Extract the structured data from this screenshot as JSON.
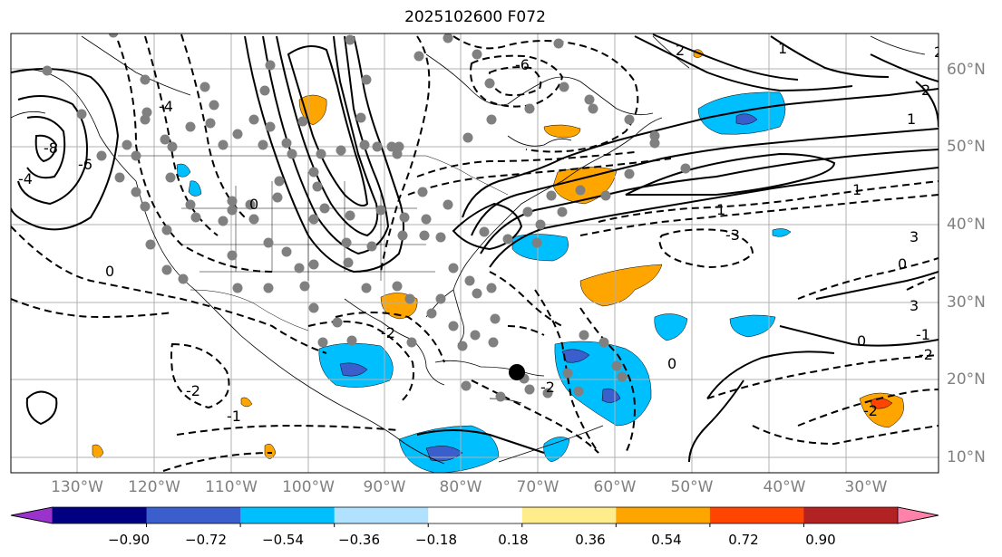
{
  "title": "2025102600 F072",
  "lat_labels": [
    "60°N",
    "50°N",
    "40°N",
    "30°N",
    "20°N",
    "10°N"
  ],
  "lon_labels": [
    "130°W",
    "120°W",
    "110°W",
    "100°W",
    "90°W",
    "80°W",
    "70°W",
    "60°W",
    "50°W",
    "40°W",
    "30°W"
  ],
  "contour_labels": [
    "-6",
    "-8",
    "-6",
    "-4",
    "-4",
    "-2",
    "-2",
    "-2",
    "-2",
    "-1",
    "-1",
    "0",
    "0",
    "0",
    "0",
    "-3",
    "1",
    "1",
    "1",
    "2",
    "2",
    "3",
    "3",
    "1",
    "2",
    "-2",
    "0"
  ],
  "colorbar": {
    "ticks": [
      "−0.90",
      "−0.72",
      "−0.54",
      "−0.36",
      "−0.18",
      "0.18",
      "0.36",
      "0.54",
      "0.72",
      "0.90"
    ],
    "colors": [
      "#9933cc",
      "#000080",
      "#3a5fcd",
      "#00bfff",
      "#b0e2ff",
      "#ffffff",
      "#ffec8b",
      "#ffa500",
      "#ff4500",
      "#b22222",
      "#ff82ab"
    ]
  },
  "colors": {
    "neg_contour": "#000000",
    "pos_contour": "#000000",
    "station": "#808080",
    "grid": "#b0b0b0",
    "coast": "#000000"
  }
}
